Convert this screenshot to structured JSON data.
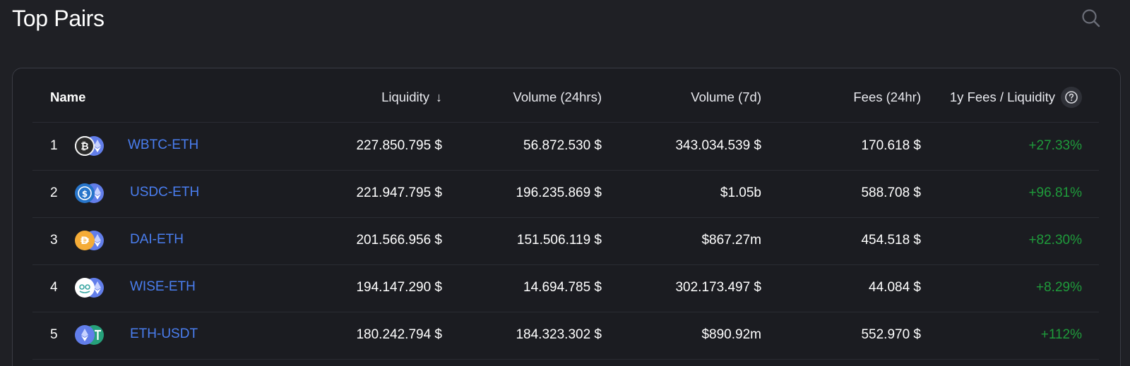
{
  "page": {
    "title": "Top Pairs"
  },
  "table": {
    "headers": {
      "name": "Name",
      "liquidity": "Liquidity",
      "sort_arrow": "↓",
      "volume_24h": "Volume (24hrs)",
      "volume_7d": "Volume (7d)",
      "fees_24h": "Fees (24hr)",
      "fees_liquidity": "1y Fees / Liquidity"
    },
    "rows": [
      {
        "rank": "1",
        "pair": "WBTC-ETH",
        "liquidity": "227.850.795 $",
        "volume_24h": "56.872.530 $",
        "volume_7d": "343.034.539 $",
        "fees_24h": "170.618 $",
        "ratio": "+27.33%",
        "token_a_icon": "wbtc-icon",
        "token_b_icon": "eth-icon"
      },
      {
        "rank": "2",
        "pair": "USDC-ETH",
        "liquidity": "221.947.795 $",
        "volume_24h": "196.235.869 $",
        "volume_7d": "$1.05b",
        "fees_24h": "588.708 $",
        "ratio": "+96.81%",
        "token_a_icon": "usdc-icon",
        "token_b_icon": "eth-icon"
      },
      {
        "rank": "3",
        "pair": "DAI-ETH",
        "liquidity": "201.566.956 $",
        "volume_24h": "151.506.119 $",
        "volume_7d": "$867.27m",
        "fees_24h": "454.518 $",
        "ratio": "+82.30%",
        "token_a_icon": "dai-icon",
        "token_b_icon": "eth-icon"
      },
      {
        "rank": "4",
        "pair": "WISE-ETH",
        "liquidity": "194.147.290 $",
        "volume_24h": "14.694.785 $",
        "volume_7d": "302.173.497 $",
        "fees_24h": "44.084 $",
        "ratio": "+8.29%",
        "token_a_icon": "wise-icon",
        "token_b_icon": "eth-icon"
      },
      {
        "rank": "5",
        "pair": "ETH-USDT",
        "liquidity": "180.242.794 $",
        "volume_24h": "184.323.302 $",
        "volume_7d": "$890.92m",
        "fees_24h": "552.970 $",
        "ratio": "+112%",
        "token_a_icon": "eth-icon",
        "token_b_icon": "usdt-icon"
      }
    ]
  },
  "colors": {
    "background": "#1f2025",
    "link": "#4a7ef0",
    "positive": "#1f9b3b"
  },
  "icons": {
    "search": "search-icon",
    "help": "help-circle-icon"
  }
}
